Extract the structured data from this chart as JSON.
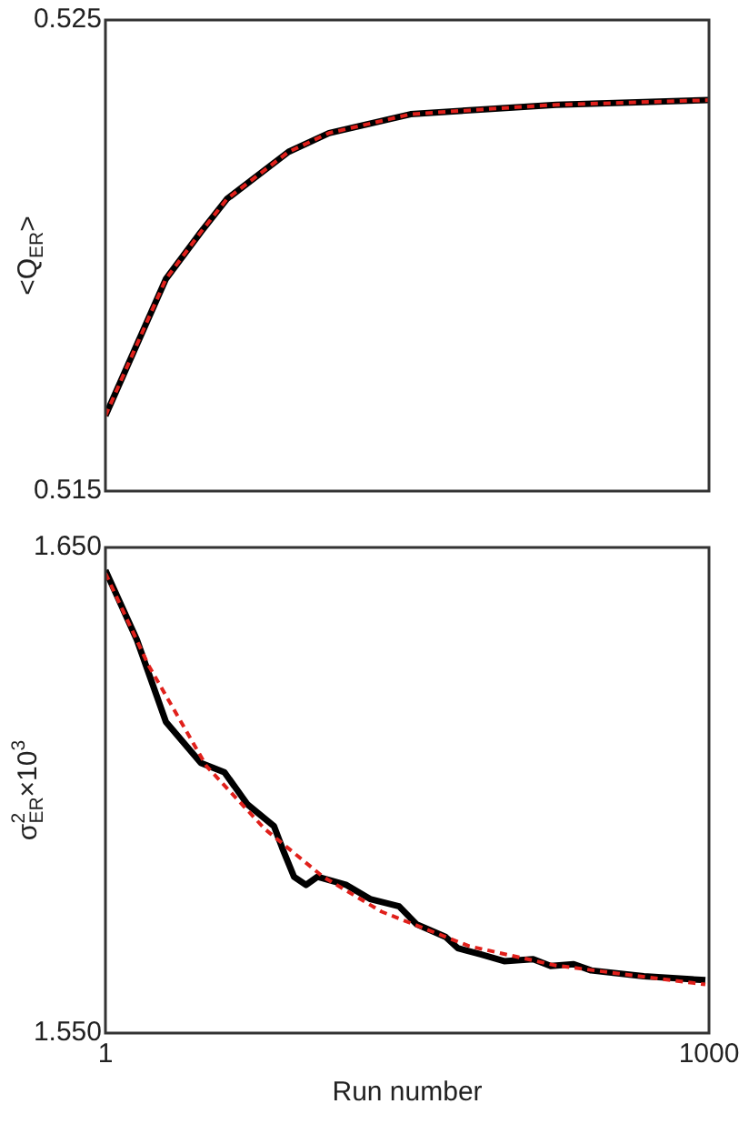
{
  "chart_data": [
    {
      "type": "line",
      "ylabel": "<Q$_{ER}$>",
      "xlim": [
        1,
        1000
      ],
      "ylim": [
        0.515,
        0.525
      ],
      "yticks": [
        0.515,
        0.525
      ],
      "tick_labels": "y",
      "series": [
        {
          "color": "#000000",
          "line_style": "solid",
          "x": [
            1,
            101,
            159,
            202,
            304,
            371,
            506,
            622,
            747,
            1000
          ],
          "values": [
            0.5166,
            0.5195,
            0.5205,
            0.5212,
            0.5222,
            0.5226,
            0.523,
            0.5231,
            0.5232,
            0.5233
          ]
        },
        {
          "color": "#e0201b",
          "line_style": "dashed",
          "x": [
            1,
            101,
            159,
            202,
            304,
            371,
            506,
            622,
            747,
            1000
          ],
          "values": [
            0.5166,
            0.5195,
            0.5205,
            0.5212,
            0.5222,
            0.5226,
            0.523,
            0.5231,
            0.5232,
            0.5233
          ]
        }
      ]
    },
    {
      "type": "line",
      "xlabel": "Run number",
      "ylabel": "σ$^{2}$$_{ER}$×10$^{3}$",
      "xlim": [
        1,
        1000
      ],
      "xticks": [
        1,
        1000
      ],
      "ylim": [
        1.55,
        1.65
      ],
      "yticks": [
        {
          "value": 1.55,
          "label": "1.550"
        },
        {
          "value": 1.65,
          "label": "1.650"
        }
      ],
      "series": [
        {
          "color": "#000000",
          "line_style": "solid",
          "x": [
            1,
            53,
            101,
            159,
            198,
            236,
            280,
            294,
            313,
            333,
            352,
            400,
            439,
            487,
            516,
            564,
            584,
            622,
            661,
            709,
            738,
            776,
            805,
            892,
            994
          ],
          "values": [
            1.6453,
            1.631,
            1.6141,
            1.6056,
            1.6037,
            1.5971,
            1.5926,
            1.588,
            1.5822,
            1.5805,
            1.5822,
            1.5805,
            1.5776,
            1.5761,
            1.5724,
            1.5698,
            1.5675,
            1.5662,
            1.5648,
            1.5652,
            1.5638,
            1.5642,
            1.5629,
            1.5617,
            1.5609
          ]
        },
        {
          "color": "#e0201b",
          "line_style": "dashed",
          "x": [
            1,
            72,
            168,
            265,
            361,
            458,
            603,
            747,
            994
          ],
          "values": [
            1.6447,
            1.6258,
            1.605,
            1.592,
            1.5822,
            1.575,
            1.5679,
            1.5639,
            1.56
          ]
        }
      ]
    }
  ]
}
